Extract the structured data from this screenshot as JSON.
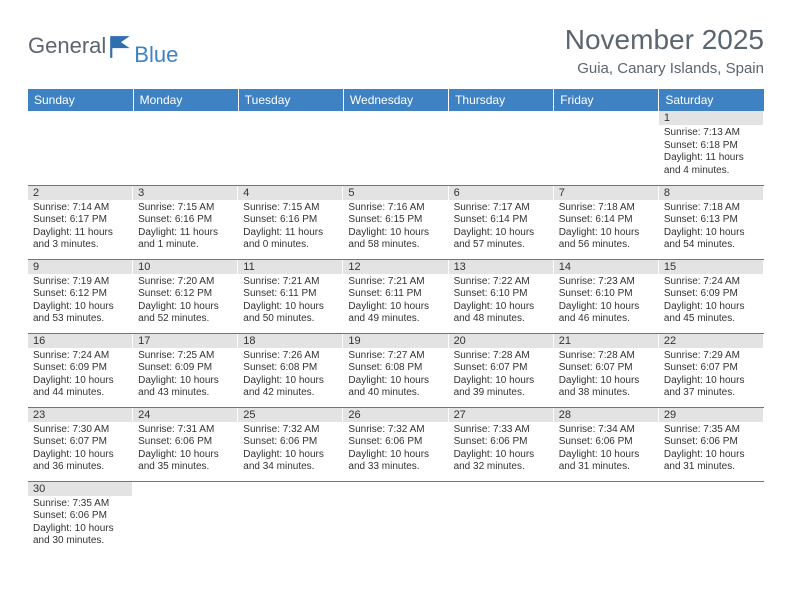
{
  "logo": {
    "part1": "General",
    "part2": "Blue"
  },
  "title": "November 2025",
  "location": "Guia, Canary Islands, Spain",
  "colors": {
    "header_bg": "#3e82c4",
    "header_text": "#ffffff",
    "daynum_bg": "#e3e3e3",
    "border": "#3e82c4",
    "text": "#333333",
    "title_text": "#5b6670"
  },
  "day_headers": [
    "Sunday",
    "Monday",
    "Tuesday",
    "Wednesday",
    "Thursday",
    "Friday",
    "Saturday"
  ],
  "weeks": [
    [
      {
        "blank": true
      },
      {
        "blank": true
      },
      {
        "blank": true
      },
      {
        "blank": true
      },
      {
        "blank": true
      },
      {
        "blank": true
      },
      {
        "n": "1",
        "sunrise": "Sunrise: 7:13 AM",
        "sunset": "Sunset: 6:18 PM",
        "daylight": "Daylight: 11 hours and 4 minutes."
      }
    ],
    [
      {
        "n": "2",
        "sunrise": "Sunrise: 7:14 AM",
        "sunset": "Sunset: 6:17 PM",
        "daylight": "Daylight: 11 hours and 3 minutes."
      },
      {
        "n": "3",
        "sunrise": "Sunrise: 7:15 AM",
        "sunset": "Sunset: 6:16 PM",
        "daylight": "Daylight: 11 hours and 1 minute."
      },
      {
        "n": "4",
        "sunrise": "Sunrise: 7:15 AM",
        "sunset": "Sunset: 6:16 PM",
        "daylight": "Daylight: 11 hours and 0 minutes."
      },
      {
        "n": "5",
        "sunrise": "Sunrise: 7:16 AM",
        "sunset": "Sunset: 6:15 PM",
        "daylight": "Daylight: 10 hours and 58 minutes."
      },
      {
        "n": "6",
        "sunrise": "Sunrise: 7:17 AM",
        "sunset": "Sunset: 6:14 PM",
        "daylight": "Daylight: 10 hours and 57 minutes."
      },
      {
        "n": "7",
        "sunrise": "Sunrise: 7:18 AM",
        "sunset": "Sunset: 6:14 PM",
        "daylight": "Daylight: 10 hours and 56 minutes."
      },
      {
        "n": "8",
        "sunrise": "Sunrise: 7:18 AM",
        "sunset": "Sunset: 6:13 PM",
        "daylight": "Daylight: 10 hours and 54 minutes."
      }
    ],
    [
      {
        "n": "9",
        "sunrise": "Sunrise: 7:19 AM",
        "sunset": "Sunset: 6:12 PM",
        "daylight": "Daylight: 10 hours and 53 minutes."
      },
      {
        "n": "10",
        "sunrise": "Sunrise: 7:20 AM",
        "sunset": "Sunset: 6:12 PM",
        "daylight": "Daylight: 10 hours and 52 minutes."
      },
      {
        "n": "11",
        "sunrise": "Sunrise: 7:21 AM",
        "sunset": "Sunset: 6:11 PM",
        "daylight": "Daylight: 10 hours and 50 minutes."
      },
      {
        "n": "12",
        "sunrise": "Sunrise: 7:21 AM",
        "sunset": "Sunset: 6:11 PM",
        "daylight": "Daylight: 10 hours and 49 minutes."
      },
      {
        "n": "13",
        "sunrise": "Sunrise: 7:22 AM",
        "sunset": "Sunset: 6:10 PM",
        "daylight": "Daylight: 10 hours and 48 minutes."
      },
      {
        "n": "14",
        "sunrise": "Sunrise: 7:23 AM",
        "sunset": "Sunset: 6:10 PM",
        "daylight": "Daylight: 10 hours and 46 minutes."
      },
      {
        "n": "15",
        "sunrise": "Sunrise: 7:24 AM",
        "sunset": "Sunset: 6:09 PM",
        "daylight": "Daylight: 10 hours and 45 minutes."
      }
    ],
    [
      {
        "n": "16",
        "sunrise": "Sunrise: 7:24 AM",
        "sunset": "Sunset: 6:09 PM",
        "daylight": "Daylight: 10 hours and 44 minutes."
      },
      {
        "n": "17",
        "sunrise": "Sunrise: 7:25 AM",
        "sunset": "Sunset: 6:09 PM",
        "daylight": "Daylight: 10 hours and 43 minutes."
      },
      {
        "n": "18",
        "sunrise": "Sunrise: 7:26 AM",
        "sunset": "Sunset: 6:08 PM",
        "daylight": "Daylight: 10 hours and 42 minutes."
      },
      {
        "n": "19",
        "sunrise": "Sunrise: 7:27 AM",
        "sunset": "Sunset: 6:08 PM",
        "daylight": "Daylight: 10 hours and 40 minutes."
      },
      {
        "n": "20",
        "sunrise": "Sunrise: 7:28 AM",
        "sunset": "Sunset: 6:07 PM",
        "daylight": "Daylight: 10 hours and 39 minutes."
      },
      {
        "n": "21",
        "sunrise": "Sunrise: 7:28 AM",
        "sunset": "Sunset: 6:07 PM",
        "daylight": "Daylight: 10 hours and 38 minutes."
      },
      {
        "n": "22",
        "sunrise": "Sunrise: 7:29 AM",
        "sunset": "Sunset: 6:07 PM",
        "daylight": "Daylight: 10 hours and 37 minutes."
      }
    ],
    [
      {
        "n": "23",
        "sunrise": "Sunrise: 7:30 AM",
        "sunset": "Sunset: 6:07 PM",
        "daylight": "Daylight: 10 hours and 36 minutes."
      },
      {
        "n": "24",
        "sunrise": "Sunrise: 7:31 AM",
        "sunset": "Sunset: 6:06 PM",
        "daylight": "Daylight: 10 hours and 35 minutes."
      },
      {
        "n": "25",
        "sunrise": "Sunrise: 7:32 AM",
        "sunset": "Sunset: 6:06 PM",
        "daylight": "Daylight: 10 hours and 34 minutes."
      },
      {
        "n": "26",
        "sunrise": "Sunrise: 7:32 AM",
        "sunset": "Sunset: 6:06 PM",
        "daylight": "Daylight: 10 hours and 33 minutes."
      },
      {
        "n": "27",
        "sunrise": "Sunrise: 7:33 AM",
        "sunset": "Sunset: 6:06 PM",
        "daylight": "Daylight: 10 hours and 32 minutes."
      },
      {
        "n": "28",
        "sunrise": "Sunrise: 7:34 AM",
        "sunset": "Sunset: 6:06 PM",
        "daylight": "Daylight: 10 hours and 31 minutes."
      },
      {
        "n": "29",
        "sunrise": "Sunrise: 7:35 AM",
        "sunset": "Sunset: 6:06 PM",
        "daylight": "Daylight: 10 hours and 31 minutes."
      }
    ],
    [
      {
        "n": "30",
        "sunrise": "Sunrise: 7:35 AM",
        "sunset": "Sunset: 6:06 PM",
        "daylight": "Daylight: 10 hours and 30 minutes."
      },
      {
        "blank": true
      },
      {
        "blank": true
      },
      {
        "blank": true
      },
      {
        "blank": true
      },
      {
        "blank": true
      },
      {
        "blank": true
      }
    ]
  ]
}
